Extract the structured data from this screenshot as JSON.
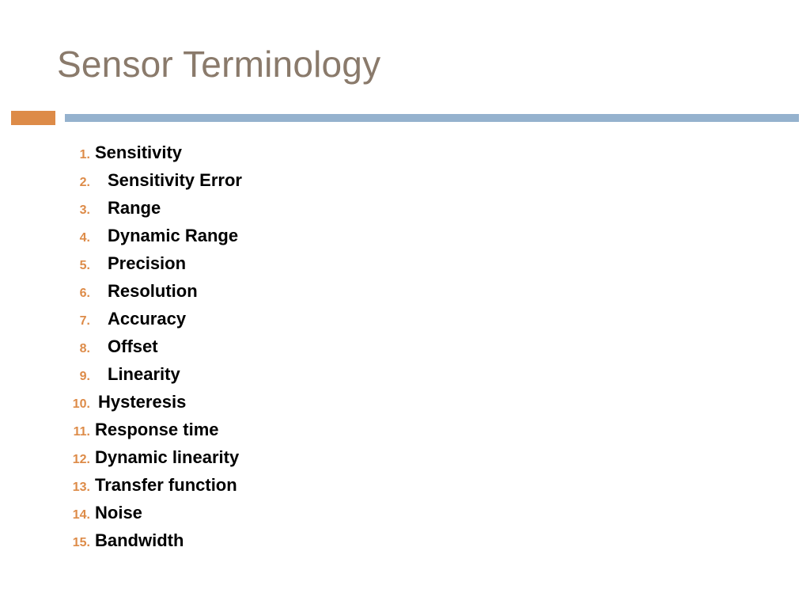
{
  "title": {
    "text": "Sensor Terminology",
    "color": "#8a7a6b"
  },
  "divider": {
    "left_color": "#dd8b48",
    "right_color": "#95b2ce"
  },
  "list": {
    "number_color": "#dd8b48",
    "text_color": "#000000",
    "items": [
      {
        "n": "1.",
        "label": "Sensitivity",
        "indent": 0
      },
      {
        "n": "2.",
        "label": "Sensitivity Error",
        "indent": 16
      },
      {
        "n": "3.",
        "label": "Range",
        "indent": 16
      },
      {
        "n": "4.",
        "label": "Dynamic Range",
        "indent": 16
      },
      {
        "n": "5.",
        "label": "Precision",
        "indent": 16
      },
      {
        "n": "6.",
        "label": "Resolution",
        "indent": 16
      },
      {
        "n": "7.",
        "label": "Accuracy",
        "indent": 16
      },
      {
        "n": "8.",
        "label": "Offset",
        "indent": 16
      },
      {
        "n": "9.",
        "label": "Linearity",
        "indent": 16
      },
      {
        "n": "10.",
        "label": "Hysteresis",
        "indent": 4
      },
      {
        "n": "11.",
        "label": "Response time",
        "indent": 0
      },
      {
        "n": "12.",
        "label": "Dynamic linearity",
        "indent": 0
      },
      {
        "n": "13.",
        "label": "Transfer function",
        "indent": 0
      },
      {
        "n": "14.",
        "label": "Noise",
        "indent": 0
      },
      {
        "n": "15.",
        "label": "Bandwidth",
        "indent": 0
      }
    ]
  }
}
